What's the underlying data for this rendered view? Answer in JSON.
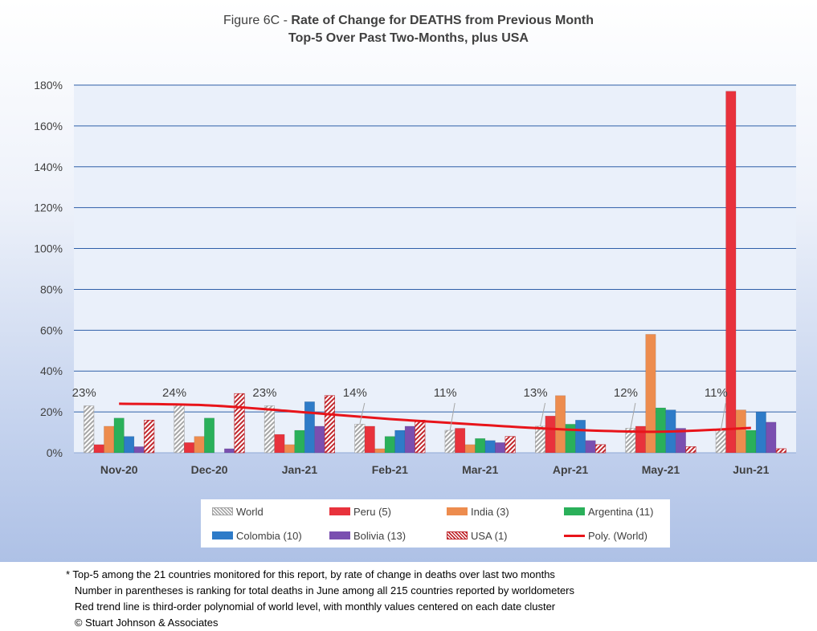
{
  "title": {
    "line1_prefix": "Figure 6C - ",
    "line1_bold": "Rate of Change for DEATHS from Previous Month",
    "line2": "Top-5 Over Past Two-Months, plus USA"
  },
  "chart_data": {
    "type": "bar",
    "categories": [
      "Nov-20",
      "Dec-20",
      "Jan-21",
      "Feb-21",
      "Mar-21",
      "Apr-21",
      "May-21",
      "Jun-21"
    ],
    "ylim": [
      0,
      180
    ],
    "yticks": [
      "0%",
      "20%",
      "40%",
      "60%",
      "80%",
      "100%",
      "120%",
      "140%",
      "160%",
      "180%"
    ],
    "grid": true,
    "legend_position": "bottom",
    "series": [
      {
        "name": "World",
        "values": [
          23,
          24,
          23,
          14,
          11,
          13,
          12,
          11
        ],
        "color": "#a6a6a6",
        "pattern": "hatch"
      },
      {
        "name": "Peru (5)",
        "values": [
          4,
          5,
          9,
          13,
          12,
          18,
          13,
          177
        ],
        "color": "#e8323c"
      },
      {
        "name": "India (3)",
        "values": [
          13,
          8,
          4,
          2,
          4,
          28,
          58,
          21
        ],
        "color": "#ed8c4e"
      },
      {
        "name": "Argentina (11)",
        "values": [
          17,
          17,
          11,
          8,
          7,
          14,
          22,
          11
        ],
        "color": "#2ab05a"
      },
      {
        "name": "Colombia (10)",
        "values": [
          8,
          0,
          25,
          11,
          6,
          16,
          21,
          20
        ],
        "color": "#2e7bc8"
      },
      {
        "name": "Bolivia (13)",
        "values": [
          3,
          2,
          13,
          13,
          5,
          6,
          12,
          15
        ],
        "color": "#7a4fb0"
      },
      {
        "name": "USA (1)",
        "values": [
          16,
          29,
          28,
          16,
          8,
          4,
          3,
          2
        ],
        "color": "#c0282e",
        "pattern": "hatch"
      }
    ],
    "data_labels": [
      "23%",
      "24%",
      "23%",
      "14%",
      "11%",
      "13%",
      "12%",
      "11%"
    ],
    "trend": {
      "name": "Poly. (World)",
      "values": [
        24,
        23.2,
        20,
        16.5,
        13.7,
        11.3,
        10.3,
        12.2
      ],
      "color": "#e8141a"
    }
  },
  "footnote": [
    "* Top-5 among the 21 countries monitored for this report, by rate of change in deaths over last two months",
    "   Number in parentheses is ranking for total deaths in June among all 215 countries reported by worldometers",
    "   Red trend line is third-order polynomial of world level, with monthly values centered on each date cluster",
    "   © Stuart Johnson & Associates"
  ]
}
